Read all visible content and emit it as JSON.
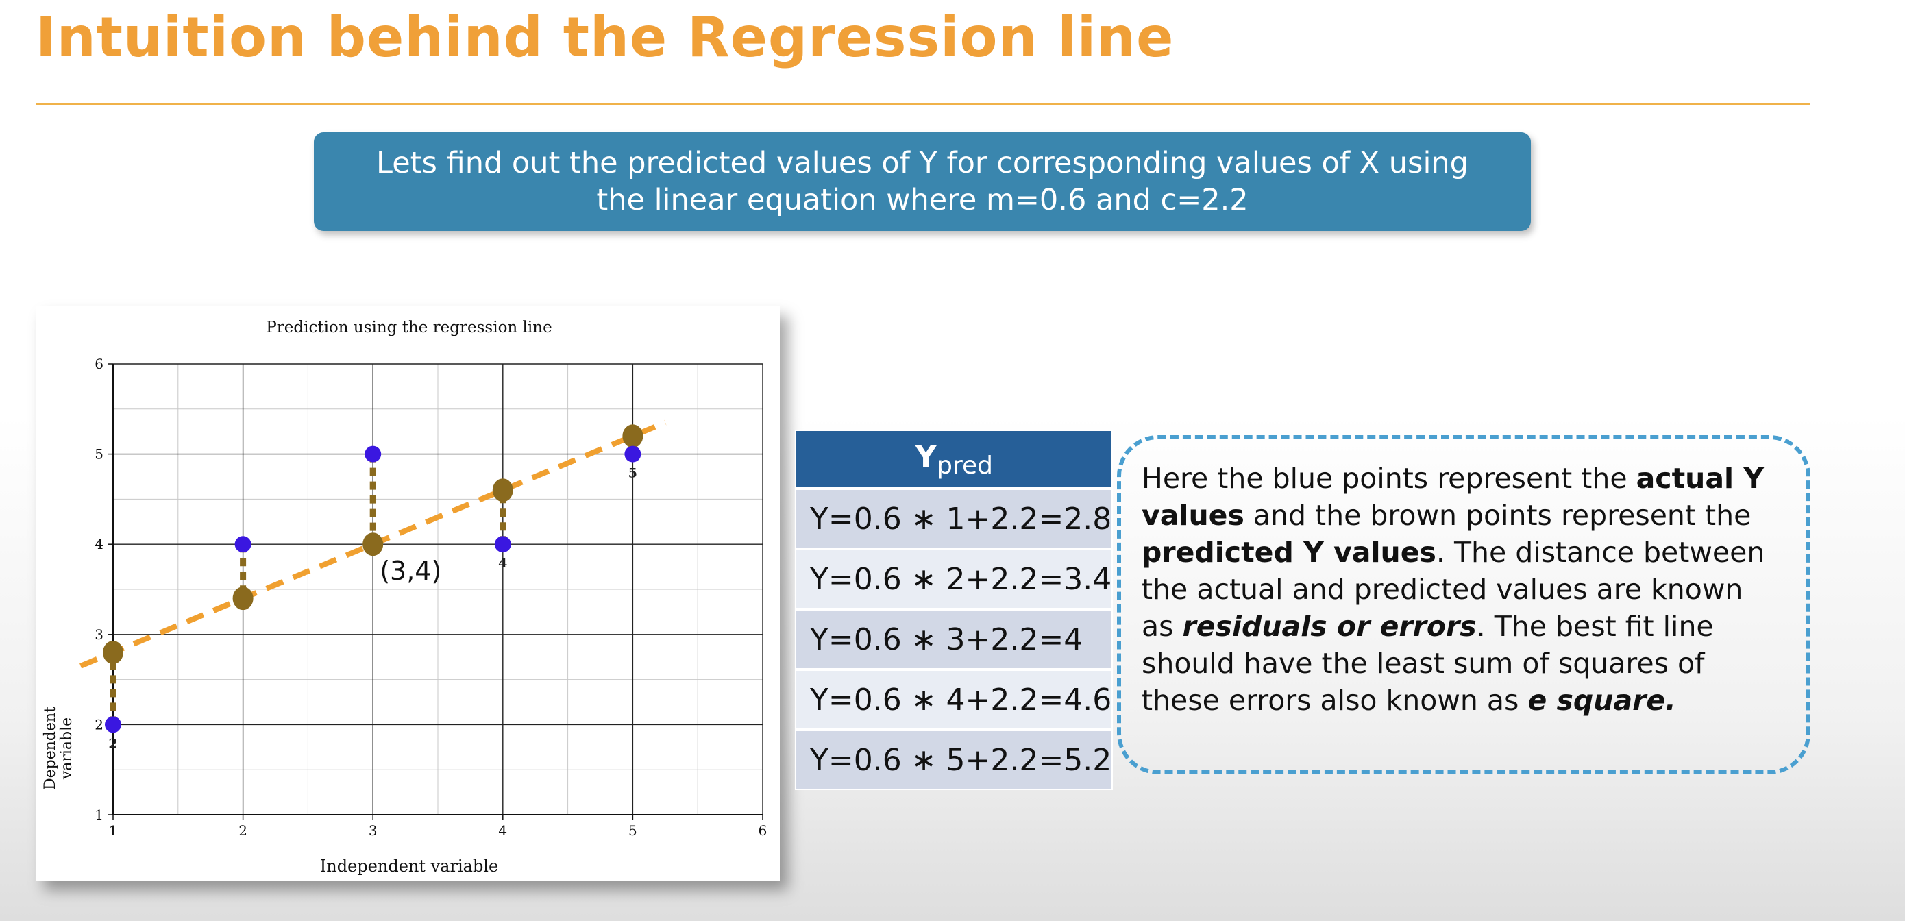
{
  "slide": {
    "title": "Intuition behind the Regression line",
    "banner_line1": "Lets find out the predicted values of Y for corresponding values of X using",
    "banner_line2": "the linear equation where m=0.6 and c=2.2"
  },
  "colors": {
    "title": "#f0a038",
    "banner": "#3a86ae",
    "actual_point": "#3a17e0",
    "predicted_point": "#8a6a1e",
    "regression_line": "#f0a030",
    "table_header": "#265f98"
  },
  "chart_data": {
    "type": "scatter",
    "title": "Prediction using the regression line",
    "xlabel": "Independent variable",
    "ylabel_line1": "Dependent",
    "ylabel_line2": "variable",
    "xlim": [
      1,
      6
    ],
    "ylim": [
      1,
      6
    ],
    "x_ticks": [
      "1",
      "2",
      "3",
      "4",
      "5",
      "6"
    ],
    "y_ticks": [
      "1",
      "2",
      "3",
      "4",
      "5",
      "6"
    ],
    "grid": true,
    "series": [
      {
        "x": [
          1,
          2,
          3,
          4,
          5
        ],
        "y": [
          2,
          4,
          5,
          4,
          5
        ]
      },
      {
        "x": [
          1,
          2,
          3,
          4,
          5
        ],
        "y": [
          2.8,
          3.4,
          4,
          4.6,
          5.2
        ]
      }
    ],
    "line": {
      "slope": 0.6,
      "intercept": 2.2,
      "x_range": [
        0.75,
        5.25
      ]
    },
    "point_labels": [
      "2",
      "",
      "",
      "4",
      "5"
    ],
    "annotation": {
      "text": "(3,4)",
      "x": 3,
      "y": 4
    }
  },
  "table": {
    "header_main": "Y",
    "header_sub": "pred",
    "rows": [
      "Y=0.6 ∗ 1+2.2=2.8",
      "Y=0.6 ∗ 2+2.2=3.4",
      "Y=0.6 ∗ 3+2.2=4",
      "Y=0.6 ∗ 4+2.2=4.6",
      "Y=0.6 ∗ 5+2.2=5.2"
    ]
  },
  "explanation": {
    "t1": "Here the blue points represent the ",
    "b1": "actual Y values",
    "t2": " and the brown points represent the ",
    "b2": "predicted Y values",
    "t3": ". The distance between the actual and predicted values are known as ",
    "i1": "residuals or errors",
    "t4": ". The best fit line should have the least sum of squares of these errors also known as ",
    "i2": "e square."
  }
}
